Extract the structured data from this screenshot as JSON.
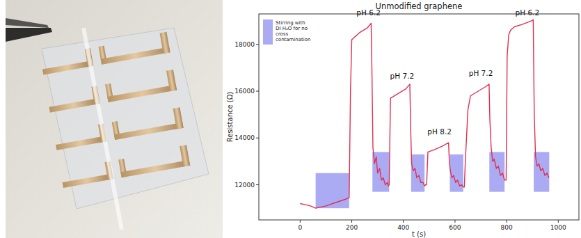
{
  "chart_data": {
    "type": "line",
    "title": "Unmodified graphene",
    "x_label": "t (s)",
    "y_label": "Resistance (Ω)",
    "xlim": [
      -160,
      1080
    ],
    "xticks": [
      0,
      200,
      400,
      600,
      800,
      1000
    ],
    "ylim": [
      10500,
      19300
    ],
    "yticks": [
      12000,
      14000,
      16000,
      18000
    ],
    "grid": false,
    "legend": "upper left",
    "x": [
      0,
      20,
      40,
      60,
      100,
      140,
      180,
      190,
      195,
      200,
      230,
      260,
      275,
      278,
      282,
      288,
      295,
      300,
      308,
      315,
      322,
      330,
      338,
      342,
      345,
      350,
      380,
      410,
      425,
      428,
      432,
      438,
      445,
      452,
      460,
      468,
      476,
      482,
      486,
      490,
      495,
      520,
      550,
      575,
      578,
      582,
      588,
      595,
      602,
      610,
      618,
      626,
      632,
      636,
      640,
      650,
      660,
      690,
      720,
      732,
      735,
      740,
      746,
      752,
      760,
      768,
      776,
      784,
      792,
      798,
      802,
      808,
      815,
      830,
      860,
      895,
      903,
      907,
      912,
      918,
      925,
      932,
      940,
      948,
      956,
      964
    ],
    "series": [
      {
        "color": "#e0304f",
        "values": [
          11200,
          11150,
          11100,
          11000,
          11100,
          11250,
          11400,
          11450,
          16000,
          18200,
          18500,
          18700,
          18900,
          17000,
          13600,
          12900,
          13200,
          12500,
          12700,
          12200,
          12300,
          12000,
          12100,
          11950,
          12000,
          15700,
          15900,
          16100,
          16300,
          14500,
          12900,
          12600,
          12700,
          12300,
          12400,
          12100,
          12100,
          11950,
          12000,
          12000,
          13400,
          13500,
          13650,
          13800,
          13000,
          12600,
          12300,
          12400,
          12100,
          12200,
          11950,
          12000,
          11900,
          11900,
          13000,
          15200,
          15800,
          16000,
          16200,
          16300,
          14800,
          13600,
          13000,
          13100,
          12700,
          12800,
          12400,
          12500,
          12200,
          12200,
          17500,
          18400,
          18600,
          18750,
          18850,
          19000,
          19050,
          15000,
          13200,
          12800,
          12900,
          12600,
          12700,
          12400,
          12500,
          12300
        ]
      }
    ],
    "regions": {
      "name": "Stirring with DI H₂O for no cross contamination",
      "color": "#8f8ff0",
      "items": [
        {
          "x0": 60,
          "x1": 190,
          "y0": 11000,
          "y1": 12500
        },
        {
          "x0": 280,
          "x1": 345,
          "y0": 11700,
          "y1": 13400
        },
        {
          "x0": 430,
          "x1": 482,
          "y0": 11700,
          "y1": 13300
        },
        {
          "x0": 580,
          "x1": 632,
          "y0": 11700,
          "y1": 13300
        },
        {
          "x0": 733,
          "x1": 792,
          "y0": 11700,
          "y1": 13400
        },
        {
          "x0": 905,
          "x1": 965,
          "y0": 11700,
          "y1": 13400
        }
      ]
    },
    "annotations": [
      {
        "text": "pH 6.2",
        "x": 265,
        "y": 19250
      },
      {
        "text": "pH 7.2",
        "x": 395,
        "y": 16550
      },
      {
        "text": "pH 8.2",
        "x": 540,
        "y": 14150
      },
      {
        "text": "pH 7.2",
        "x": 700,
        "y": 16650
      },
      {
        "text": "pH 6.2",
        "x": 880,
        "y": 19250
      }
    ]
  }
}
